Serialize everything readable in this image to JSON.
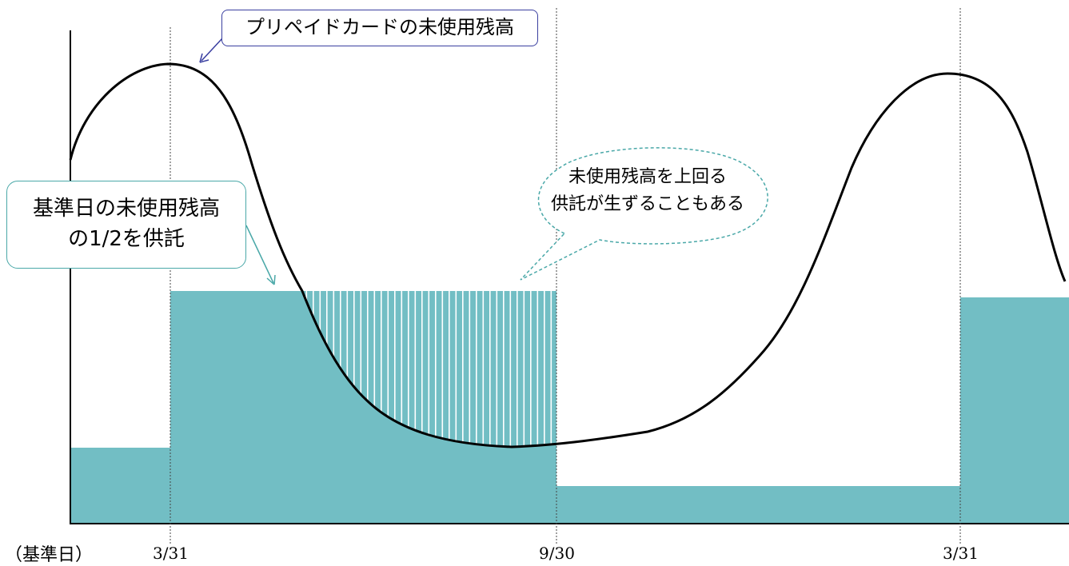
{
  "axis_caption": "（基準日）",
  "dates": [
    "3/31",
    "9/30",
    "3/31"
  ],
  "callouts": {
    "prepaid_balance": "プリペイドカードの未使用残高",
    "deposit_line1": "基準日の未使用残高",
    "deposit_line2": "の1/2を供託",
    "excess_line1": "未使用残高を上回る",
    "excess_line2": "供託が生ずることもある"
  },
  "colors": {
    "deposit_fill": "#72BEC4",
    "curve": "#000000",
    "prepaid_callout_border": "#3A3FA0",
    "deposit_callout_border": "#4AA8A8",
    "excess_callout_border": "#4AA8A8"
  }
}
